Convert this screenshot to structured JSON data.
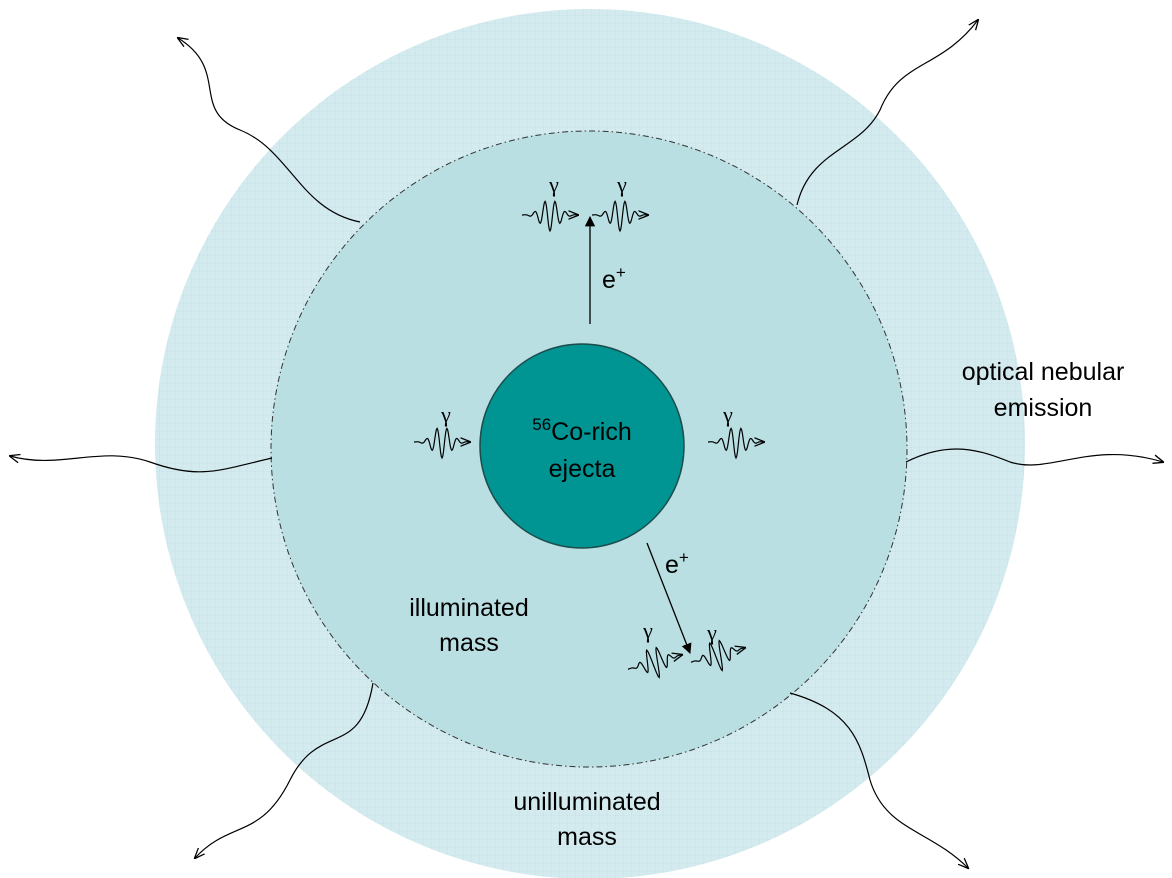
{
  "core": {
    "isotope": "56",
    "line1": "Co-rich",
    "line2": "ejecta"
  },
  "regions": {
    "illuminated": [
      "illuminated",
      "mass"
    ],
    "unilluminated": [
      "unilluminated",
      "mass"
    ]
  },
  "emission": [
    "optical nebular",
    "emission"
  ],
  "photons": [
    "γ",
    "γ",
    "γ",
    "γ",
    "γ",
    "γ"
  ],
  "positrons": [
    {
      "symbol": "e",
      "charge": "+"
    },
    {
      "symbol": "e",
      "charge": "+"
    }
  ]
}
